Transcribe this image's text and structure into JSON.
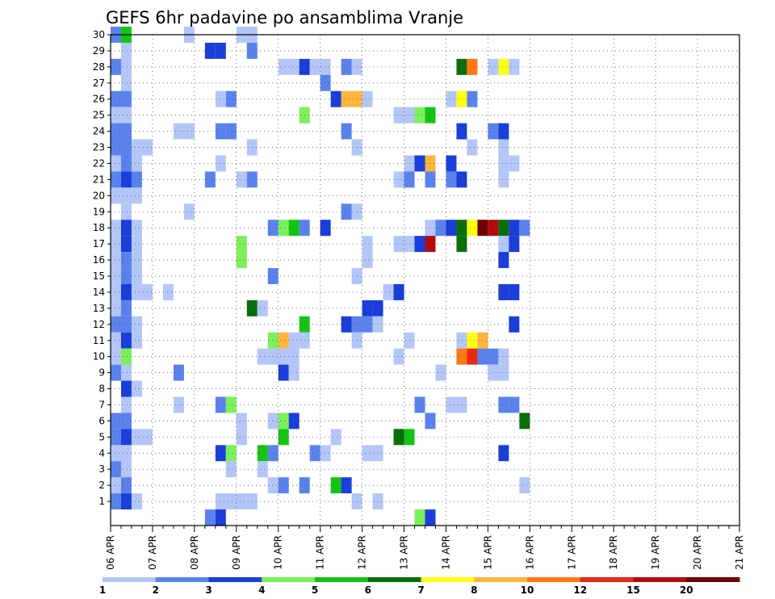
{
  "chart_data": {
    "type": "heatmap",
    "title": "GEFS 6hr padavine po ansamblima Vranje",
    "xlabel": "",
    "ylabel": "",
    "x_tick_labels": [
      "06 APR",
      "07 APR",
      "08 APR",
      "09 APR",
      "10 APR",
      "11 APR",
      "12 APR",
      "13 APR",
      "14 APR",
      "15 APR",
      "16 APR",
      "17 APR",
      "18 APR",
      "19 APR",
      "20 APR",
      "21 APR"
    ],
    "y_tick_labels": [
      "1",
      "2",
      "3",
      "4",
      "5",
      "6",
      "7",
      "8",
      "9",
      "10",
      "11",
      "12",
      "13",
      "14",
      "15",
      "16",
      "17",
      "18",
      "19",
      "20",
      "21",
      "22",
      "23",
      "24",
      "25",
      "26",
      "27",
      "28",
      "29",
      "30"
    ],
    "x_time_steps": 61,
    "members": 30,
    "colorbar": {
      "labels": [
        "1",
        "2",
        "3",
        "4",
        "5",
        "6",
        "7",
        "8",
        "10",
        "12",
        "15",
        "20"
      ],
      "colors": [
        "#b3c6f7",
        "#5a82ec",
        "#1a3ed9",
        "#7af05a",
        "#14c314",
        "#0a6e0a",
        "#ffff14",
        "#ffb43c",
        "#ff7814",
        "#e62814",
        "#b40a0a",
        "#6e0000"
      ]
    },
    "grid": true,
    "cells": [
      {
        "m": 30,
        "t": 0,
        "c": 1
      },
      {
        "m": 30,
        "t": 1,
        "c": 4
      },
      {
        "m": 30,
        "t": 7,
        "c": 0
      },
      {
        "m": 30,
        "t": 12,
        "c": 0
      },
      {
        "m": 30,
        "t": 13,
        "c": 0
      },
      {
        "m": 29,
        "t": 1,
        "c": 0
      },
      {
        "m": 29,
        "t": 9,
        "c": 2
      },
      {
        "m": 29,
        "t": 10,
        "c": 2
      },
      {
        "m": 29,
        "t": 13,
        "c": 1
      },
      {
        "m": 28,
        "t": 0,
        "c": 1
      },
      {
        "m": 28,
        "t": 1,
        "c": 0
      },
      {
        "m": 28,
        "t": 16,
        "c": 0
      },
      {
        "m": 28,
        "t": 17,
        "c": 0
      },
      {
        "m": 28,
        "t": 18,
        "c": 2
      },
      {
        "m": 28,
        "t": 19,
        "c": 0
      },
      {
        "m": 28,
        "t": 20,
        "c": 0
      },
      {
        "m": 28,
        "t": 22,
        "c": 1
      },
      {
        "m": 28,
        "t": 23,
        "c": 0
      },
      {
        "m": 28,
        "t": 33,
        "c": 5
      },
      {
        "m": 28,
        "t": 34,
        "c": 8
      },
      {
        "m": 28,
        "t": 36,
        "c": 0
      },
      {
        "m": 28,
        "t": 37,
        "c": 6
      },
      {
        "m": 28,
        "t": 38,
        "c": 0
      },
      {
        "m": 27,
        "t": 1,
        "c": 0
      },
      {
        "m": 27,
        "t": 20,
        "c": 1
      },
      {
        "m": 26,
        "t": 0,
        "c": 1
      },
      {
        "m": 26,
        "t": 1,
        "c": 1
      },
      {
        "m": 26,
        "t": 10,
        "c": 0
      },
      {
        "m": 26,
        "t": 11,
        "c": 1
      },
      {
        "m": 26,
        "t": 21,
        "c": 2
      },
      {
        "m": 26,
        "t": 22,
        "c": 7
      },
      {
        "m": 26,
        "t": 23,
        "c": 7
      },
      {
        "m": 26,
        "t": 24,
        "c": 0
      },
      {
        "m": 26,
        "t": 32,
        "c": 0
      },
      {
        "m": 26,
        "t": 33,
        "c": 6
      },
      {
        "m": 26,
        "t": 34,
        "c": 1
      },
      {
        "m": 25,
        "t": 0,
        "c": 0
      },
      {
        "m": 25,
        "t": 1,
        "c": 0
      },
      {
        "m": 25,
        "t": 18,
        "c": 3
      },
      {
        "m": 25,
        "t": 27,
        "c": 0
      },
      {
        "m": 25,
        "t": 28,
        "c": 0
      },
      {
        "m": 25,
        "t": 29,
        "c": 3
      },
      {
        "m": 25,
        "t": 30,
        "c": 4
      },
      {
        "m": 24,
        "t": 0,
        "c": 1
      },
      {
        "m": 24,
        "t": 1,
        "c": 1
      },
      {
        "m": 24,
        "t": 6,
        "c": 0
      },
      {
        "m": 24,
        "t": 7,
        "c": 0
      },
      {
        "m": 24,
        "t": 10,
        "c": 1
      },
      {
        "m": 24,
        "t": 11,
        "c": 1
      },
      {
        "m": 24,
        "t": 22,
        "c": 1
      },
      {
        "m": 24,
        "t": 33,
        "c": 2
      },
      {
        "m": 24,
        "t": 36,
        "c": 1
      },
      {
        "m": 24,
        "t": 37,
        "c": 2
      },
      {
        "m": 23,
        "t": 0,
        "c": 1
      },
      {
        "m": 23,
        "t": 1,
        "c": 1
      },
      {
        "m": 23,
        "t": 2,
        "c": 0
      },
      {
        "m": 23,
        "t": 3,
        "c": 0
      },
      {
        "m": 23,
        "t": 13,
        "c": 0
      },
      {
        "m": 23,
        "t": 23,
        "c": 0
      },
      {
        "m": 23,
        "t": 34,
        "c": 0
      },
      {
        "m": 23,
        "t": 37,
        "c": 0
      },
      {
        "m": 22,
        "t": 0,
        "c": 0
      },
      {
        "m": 22,
        "t": 1,
        "c": 1
      },
      {
        "m": 22,
        "t": 2,
        "c": 0
      },
      {
        "m": 22,
        "t": 10,
        "c": 0
      },
      {
        "m": 22,
        "t": 28,
        "c": 0
      },
      {
        "m": 22,
        "t": 29,
        "c": 2
      },
      {
        "m": 22,
        "t": 30,
        "c": 7
      },
      {
        "m": 22,
        "t": 32,
        "c": 2
      },
      {
        "m": 22,
        "t": 37,
        "c": 0
      },
      {
        "m": 22,
        "t": 38,
        "c": 0
      },
      {
        "m": 21,
        "t": 0,
        "c": 1
      },
      {
        "m": 21,
        "t": 1,
        "c": 2
      },
      {
        "m": 21,
        "t": 2,
        "c": 1
      },
      {
        "m": 21,
        "t": 9,
        "c": 1
      },
      {
        "m": 21,
        "t": 12,
        "c": 0
      },
      {
        "m": 21,
        "t": 13,
        "c": 1
      },
      {
        "m": 21,
        "t": 27,
        "c": 0
      },
      {
        "m": 21,
        "t": 28,
        "c": 1
      },
      {
        "m": 21,
        "t": 30,
        "c": 1
      },
      {
        "m": 21,
        "t": 32,
        "c": 1
      },
      {
        "m": 21,
        "t": 33,
        "c": 2
      },
      {
        "m": 21,
        "t": 37,
        "c": 0
      },
      {
        "m": 20,
        "t": 0,
        "c": 0
      },
      {
        "m": 20,
        "t": 1,
        "c": 0
      },
      {
        "m": 20,
        "t": 2,
        "c": 0
      },
      {
        "m": 19,
        "t": 1,
        "c": 0
      },
      {
        "m": 19,
        "t": 7,
        "c": 0
      },
      {
        "m": 19,
        "t": 22,
        "c": 1
      },
      {
        "m": 19,
        "t": 23,
        "c": 0
      },
      {
        "m": 18,
        "t": 0,
        "c": 0
      },
      {
        "m": 18,
        "t": 1,
        "c": 2
      },
      {
        "m": 18,
        "t": 2,
        "c": 0
      },
      {
        "m": 18,
        "t": 15,
        "c": 1
      },
      {
        "m": 18,
        "t": 16,
        "c": 3
      },
      {
        "m": 18,
        "t": 17,
        "c": 4
      },
      {
        "m": 18,
        "t": 18,
        "c": 1
      },
      {
        "m": 18,
        "t": 20,
        "c": 2
      },
      {
        "m": 18,
        "t": 30,
        "c": 0
      },
      {
        "m": 18,
        "t": 31,
        "c": 1
      },
      {
        "m": 18,
        "t": 32,
        "c": 2
      },
      {
        "m": 18,
        "t": 33,
        "c": 5
      },
      {
        "m": 18,
        "t": 34,
        "c": 6
      },
      {
        "m": 18,
        "t": 35,
        "c": 11
      },
      {
        "m": 18,
        "t": 36,
        "c": 10
      },
      {
        "m": 18,
        "t": 37,
        "c": 5
      },
      {
        "m": 18,
        "t": 38,
        "c": 2
      },
      {
        "m": 18,
        "t": 39,
        "c": 1
      },
      {
        "m": 17,
        "t": 0,
        "c": 0
      },
      {
        "m": 17,
        "t": 1,
        "c": 2
      },
      {
        "m": 17,
        "t": 2,
        "c": 0
      },
      {
        "m": 17,
        "t": 12,
        "c": 3
      },
      {
        "m": 17,
        "t": 24,
        "c": 0
      },
      {
        "m": 17,
        "t": 27,
        "c": 0
      },
      {
        "m": 17,
        "t": 28,
        "c": 0
      },
      {
        "m": 17,
        "t": 29,
        "c": 2
      },
      {
        "m": 17,
        "t": 30,
        "c": 10
      },
      {
        "m": 17,
        "t": 33,
        "c": 5
      },
      {
        "m": 17,
        "t": 37,
        "c": 0
      },
      {
        "m": 17,
        "t": 38,
        "c": 2
      },
      {
        "m": 16,
        "t": 0,
        "c": 0
      },
      {
        "m": 16,
        "t": 1,
        "c": 1
      },
      {
        "m": 16,
        "t": 2,
        "c": 0
      },
      {
        "m": 16,
        "t": 12,
        "c": 3
      },
      {
        "m": 16,
        "t": 24,
        "c": 0
      },
      {
        "m": 16,
        "t": 37,
        "c": 2
      },
      {
        "m": 15,
        "t": 0,
        "c": 0
      },
      {
        "m": 15,
        "t": 1,
        "c": 1
      },
      {
        "m": 15,
        "t": 2,
        "c": 0
      },
      {
        "m": 15,
        "t": 15,
        "c": 1
      },
      {
        "m": 15,
        "t": 23,
        "c": 0
      },
      {
        "m": 14,
        "t": 0,
        "c": 0
      },
      {
        "m": 14,
        "t": 1,
        "c": 2
      },
      {
        "m": 14,
        "t": 2,
        "c": 0
      },
      {
        "m": 14,
        "t": 3,
        "c": 0
      },
      {
        "m": 14,
        "t": 5,
        "c": 0
      },
      {
        "m": 14,
        "t": 26,
        "c": 0
      },
      {
        "m": 14,
        "t": 27,
        "c": 2
      },
      {
        "m": 14,
        "t": 37,
        "c": 2
      },
      {
        "m": 14,
        "t": 38,
        "c": 2
      },
      {
        "m": 13,
        "t": 0,
        "c": 0
      },
      {
        "m": 13,
        "t": 1,
        "c": 1
      },
      {
        "m": 13,
        "t": 13,
        "c": 5
      },
      {
        "m": 13,
        "t": 14,
        "c": 0
      },
      {
        "m": 13,
        "t": 24,
        "c": 2
      },
      {
        "m": 13,
        "t": 25,
        "c": 2
      },
      {
        "m": 12,
        "t": 0,
        "c": 1
      },
      {
        "m": 12,
        "t": 1,
        "c": 1
      },
      {
        "m": 12,
        "t": 2,
        "c": 0
      },
      {
        "m": 12,
        "t": 18,
        "c": 4
      },
      {
        "m": 12,
        "t": 22,
        "c": 2
      },
      {
        "m": 12,
        "t": 23,
        "c": 1
      },
      {
        "m": 12,
        "t": 24,
        "c": 1
      },
      {
        "m": 12,
        "t": 25,
        "c": 0
      },
      {
        "m": 12,
        "t": 38,
        "c": 2
      },
      {
        "m": 11,
        "t": 0,
        "c": 0
      },
      {
        "m": 11,
        "t": 1,
        "c": 2
      },
      {
        "m": 11,
        "t": 2,
        "c": 0
      },
      {
        "m": 11,
        "t": 15,
        "c": 3
      },
      {
        "m": 11,
        "t": 16,
        "c": 7
      },
      {
        "m": 11,
        "t": 17,
        "c": 0
      },
      {
        "m": 11,
        "t": 18,
        "c": 0
      },
      {
        "m": 11,
        "t": 23,
        "c": 0
      },
      {
        "m": 11,
        "t": 28,
        "c": 0
      },
      {
        "m": 11,
        "t": 33,
        "c": 0
      },
      {
        "m": 11,
        "t": 34,
        "c": 6
      },
      {
        "m": 11,
        "t": 35,
        "c": 7
      },
      {
        "m": 10,
        "t": 0,
        "c": 0
      },
      {
        "m": 10,
        "t": 1,
        "c": 3
      },
      {
        "m": 10,
        "t": 14,
        "c": 0
      },
      {
        "m": 10,
        "t": 15,
        "c": 0
      },
      {
        "m": 10,
        "t": 16,
        "c": 0
      },
      {
        "m": 10,
        "t": 17,
        "c": 0
      },
      {
        "m": 10,
        "t": 27,
        "c": 0
      },
      {
        "m": 10,
        "t": 33,
        "c": 8
      },
      {
        "m": 10,
        "t": 34,
        "c": 9
      },
      {
        "m": 10,
        "t": 35,
        "c": 1
      },
      {
        "m": 10,
        "t": 36,
        "c": 1
      },
      {
        "m": 10,
        "t": 37,
        "c": 0
      },
      {
        "m": 9,
        "t": 0,
        "c": 1
      },
      {
        "m": 9,
        "t": 1,
        "c": 0
      },
      {
        "m": 9,
        "t": 6,
        "c": 1
      },
      {
        "m": 9,
        "t": 16,
        "c": 2
      },
      {
        "m": 9,
        "t": 17,
        "c": 0
      },
      {
        "m": 9,
        "t": 31,
        "c": 0
      },
      {
        "m": 9,
        "t": 36,
        "c": 0
      },
      {
        "m": 9,
        "t": 37,
        "c": 0
      },
      {
        "m": 8,
        "t": 1,
        "c": 2
      },
      {
        "m": 8,
        "t": 2,
        "c": 0
      },
      {
        "m": 7,
        "t": 1,
        "c": 0
      },
      {
        "m": 7,
        "t": 6,
        "c": 0
      },
      {
        "m": 7,
        "t": 10,
        "c": 1
      },
      {
        "m": 7,
        "t": 11,
        "c": 3
      },
      {
        "m": 7,
        "t": 29,
        "c": 1
      },
      {
        "m": 7,
        "t": 32,
        "c": 0
      },
      {
        "m": 7,
        "t": 33,
        "c": 0
      },
      {
        "m": 7,
        "t": 37,
        "c": 1
      },
      {
        "m": 7,
        "t": 38,
        "c": 1
      },
      {
        "m": 6,
        "t": 0,
        "c": 1
      },
      {
        "m": 6,
        "t": 1,
        "c": 1
      },
      {
        "m": 6,
        "t": 12,
        "c": 0
      },
      {
        "m": 6,
        "t": 15,
        "c": 0
      },
      {
        "m": 6,
        "t": 16,
        "c": 3
      },
      {
        "m": 6,
        "t": 17,
        "c": 2
      },
      {
        "m": 6,
        "t": 30,
        "c": 1
      },
      {
        "m": 6,
        "t": 39,
        "c": 5
      },
      {
        "m": 5,
        "t": 0,
        "c": 1
      },
      {
        "m": 5,
        "t": 1,
        "c": 2
      },
      {
        "m": 5,
        "t": 2,
        "c": 0
      },
      {
        "m": 5,
        "t": 3,
        "c": 0
      },
      {
        "m": 5,
        "t": 12,
        "c": 0
      },
      {
        "m": 5,
        "t": 16,
        "c": 4
      },
      {
        "m": 5,
        "t": 21,
        "c": 0
      },
      {
        "m": 5,
        "t": 27,
        "c": 5
      },
      {
        "m": 5,
        "t": 28,
        "c": 4
      },
      {
        "m": 4,
        "t": 0,
        "c": 0
      },
      {
        "m": 4,
        "t": 1,
        "c": 0
      },
      {
        "m": 4,
        "t": 10,
        "c": 2
      },
      {
        "m": 4,
        "t": 11,
        "c": 3
      },
      {
        "m": 4,
        "t": 14,
        "c": 4
      },
      {
        "m": 4,
        "t": 15,
        "c": 1
      },
      {
        "m": 4,
        "t": 19,
        "c": 1
      },
      {
        "m": 4,
        "t": 20,
        "c": 0
      },
      {
        "m": 4,
        "t": 24,
        "c": 0
      },
      {
        "m": 4,
        "t": 25,
        "c": 0
      },
      {
        "m": 4,
        "t": 37,
        "c": 2
      },
      {
        "m": 3,
        "t": 0,
        "c": 1
      },
      {
        "m": 3,
        "t": 1,
        "c": 0
      },
      {
        "m": 3,
        "t": 11,
        "c": 0
      },
      {
        "m": 3,
        "t": 14,
        "c": 0
      },
      {
        "m": 2,
        "t": 0,
        "c": 0
      },
      {
        "m": 2,
        "t": 1,
        "c": 1
      },
      {
        "m": 2,
        "t": 15,
        "c": 0
      },
      {
        "m": 2,
        "t": 16,
        "c": 1
      },
      {
        "m": 2,
        "t": 18,
        "c": 1
      },
      {
        "m": 2,
        "t": 21,
        "c": 4
      },
      {
        "m": 2,
        "t": 22,
        "c": 2
      },
      {
        "m": 2,
        "t": 39,
        "c": 0
      },
      {
        "m": 1,
        "t": 0,
        "c": 1
      },
      {
        "m": 1,
        "t": 1,
        "c": 2
      },
      {
        "m": 1,
        "t": 2,
        "c": 0
      },
      {
        "m": 1,
        "t": 10,
        "c": 0
      },
      {
        "m": 1,
        "t": 11,
        "c": 0
      },
      {
        "m": 1,
        "t": 12,
        "c": 0
      },
      {
        "m": 1,
        "t": 13,
        "c": 0
      },
      {
        "m": 1,
        "t": 23,
        "c": 0
      },
      {
        "m": 1,
        "t": 25,
        "c": 0
      },
      {
        "m": 0,
        "t": 9,
        "c": 1
      },
      {
        "m": 0,
        "t": 10,
        "c": 2
      },
      {
        "m": 0,
        "t": 29,
        "c": 3
      },
      {
        "m": 0,
        "t": 30,
        "c": 2
      }
    ]
  }
}
